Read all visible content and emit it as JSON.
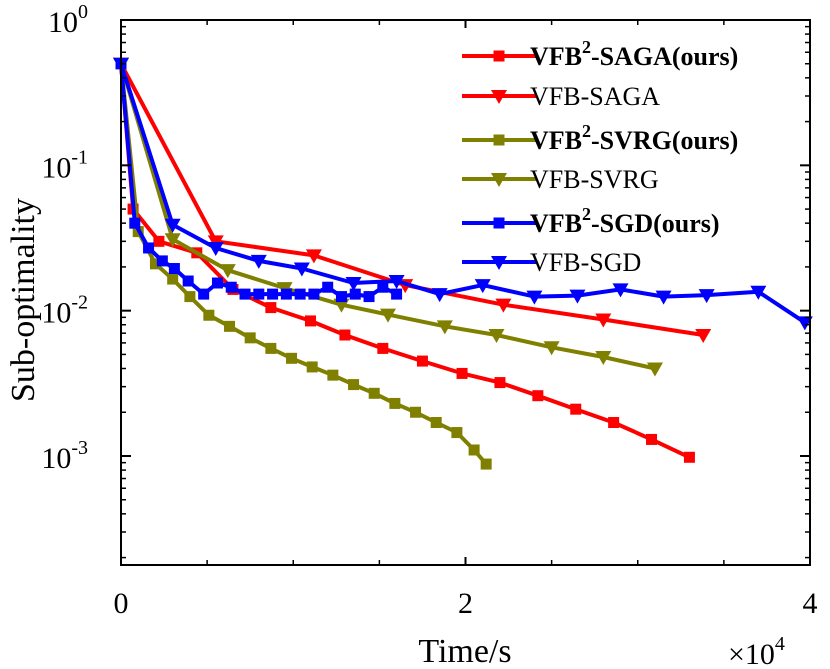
{
  "chart_data": {
    "type": "line",
    "xlabel": "Time/s",
    "ylabel": "Sub-optimality",
    "x_scale_label": "×10",
    "x_scale_exponent": "4",
    "xlim": [
      0,
      40000
    ],
    "ylim_log10": [
      -3.75,
      0
    ],
    "x_ticks": [
      {
        "value": 0,
        "label": "0"
      },
      {
        "value": 20000,
        "label": "2"
      },
      {
        "value": 40000,
        "label": "4"
      }
    ],
    "y_ticks": [
      {
        "value": 0,
        "base": "10",
        "exp": "0"
      },
      {
        "value": -1,
        "base": "10",
        "exp": "-1"
      },
      {
        "value": -2,
        "base": "10",
        "exp": "-2"
      },
      {
        "value": -3,
        "base": "10",
        "exp": "-3"
      }
    ],
    "series": [
      {
        "name": "VFB²-SAGA(ours)",
        "legend": {
          "main": "VFB",
          "sup": "2",
          "rest": "-SAGA(ours)"
        },
        "bold": true,
        "color": "#ff0000",
        "marker": "square",
        "points": [
          [
            0,
            0.5
          ],
          [
            700,
            0.05
          ],
          [
            2200,
            0.03
          ],
          [
            4400,
            0.025
          ],
          [
            6500,
            0.014
          ],
          [
            8700,
            0.0105
          ],
          [
            11000,
            0.0085
          ],
          [
            13000,
            0.0068
          ],
          [
            15200,
            0.0055
          ],
          [
            17500,
            0.0045
          ],
          [
            19800,
            0.0037
          ],
          [
            22000,
            0.0032
          ],
          [
            24200,
            0.0026
          ],
          [
            26400,
            0.0021
          ],
          [
            28600,
            0.0017
          ],
          [
            30800,
            0.0013
          ],
          [
            33000,
            0.00098
          ]
        ]
      },
      {
        "name": "VFB-SAGA",
        "legend": {
          "main": "VFB-SAGA"
        },
        "bold": false,
        "color": "#ff0000",
        "marker": "triangle",
        "points": [
          [
            0,
            0.5
          ],
          [
            5500,
            0.03
          ],
          [
            11200,
            0.024
          ],
          [
            16500,
            0.015
          ],
          [
            22200,
            0.011
          ],
          [
            28000,
            0.0087
          ],
          [
            33800,
            0.0068
          ]
        ]
      },
      {
        "name": "VFB²-SVRG(ours)",
        "legend": {
          "main": "VFB",
          "sup": "2",
          "rest": "-SVRG(ours)"
        },
        "bold": true,
        "color": "#808000",
        "marker": "square",
        "points": [
          [
            0,
            0.5
          ],
          [
            1000,
            0.035
          ],
          [
            2000,
            0.021
          ],
          [
            3000,
            0.0165
          ],
          [
            4000,
            0.0125
          ],
          [
            5100,
            0.0093
          ],
          [
            6300,
            0.0078
          ],
          [
            7500,
            0.0065
          ],
          [
            8700,
            0.0055
          ],
          [
            9900,
            0.0047
          ],
          [
            11100,
            0.0041
          ],
          [
            12300,
            0.0036
          ],
          [
            13500,
            0.0031
          ],
          [
            14700,
            0.0027
          ],
          [
            15900,
            0.0023
          ],
          [
            17100,
            0.002
          ],
          [
            18300,
            0.0017
          ],
          [
            19500,
            0.00145
          ],
          [
            20500,
            0.0011
          ],
          [
            21200,
            0.00088
          ]
        ]
      },
      {
        "name": "VFB-SVRG",
        "legend": {
          "main": "VFB-SVRG"
        },
        "bold": false,
        "color": "#808000",
        "marker": "triangle",
        "points": [
          [
            0,
            0.5
          ],
          [
            3000,
            0.031
          ],
          [
            6200,
            0.019
          ],
          [
            9500,
            0.0143
          ],
          [
            12800,
            0.011
          ],
          [
            15500,
            0.0094
          ],
          [
            18800,
            0.0078
          ],
          [
            21800,
            0.0068
          ],
          [
            25000,
            0.0056
          ],
          [
            28000,
            0.0048
          ],
          [
            31000,
            0.004
          ]
        ]
      },
      {
        "name": "VFB²-SGD(ours)",
        "legend": {
          "main": "VFB",
          "sup": "2",
          "rest": "-SGD(ours)"
        },
        "bold": true,
        "color": "#0000ff",
        "marker": "square",
        "points": [
          [
            0,
            0.5
          ],
          [
            800,
            0.04
          ],
          [
            1600,
            0.027
          ],
          [
            2400,
            0.022
          ],
          [
            3100,
            0.0195
          ],
          [
            3900,
            0.016
          ],
          [
            4800,
            0.013
          ],
          [
            5600,
            0.0155
          ],
          [
            6400,
            0.0145
          ],
          [
            7200,
            0.013
          ],
          [
            8000,
            0.013
          ],
          [
            8800,
            0.013
          ],
          [
            9600,
            0.013
          ],
          [
            10400,
            0.013
          ],
          [
            11200,
            0.013
          ],
          [
            12000,
            0.0145
          ],
          [
            12800,
            0.0125
          ],
          [
            13600,
            0.013
          ],
          [
            14400,
            0.0125
          ],
          [
            15200,
            0.0145
          ],
          [
            16000,
            0.013
          ]
        ]
      },
      {
        "name": "VFB-SGD",
        "legend": {
          "main": "VFB-SGD"
        },
        "bold": false,
        "color": "#0000ff",
        "marker": "triangle",
        "points": [
          [
            0,
            0.5
          ],
          [
            3000,
            0.039
          ],
          [
            5500,
            0.027
          ],
          [
            8000,
            0.022
          ],
          [
            10500,
            0.0195
          ],
          [
            13500,
            0.0155
          ],
          [
            16000,
            0.016
          ],
          [
            18500,
            0.013
          ],
          [
            21000,
            0.015
          ],
          [
            24000,
            0.0125
          ],
          [
            26500,
            0.0127
          ],
          [
            29000,
            0.014
          ],
          [
            31500,
            0.0125
          ],
          [
            34000,
            0.0128
          ],
          [
            37000,
            0.0135
          ],
          [
            39700,
            0.0083
          ]
        ]
      }
    ]
  }
}
